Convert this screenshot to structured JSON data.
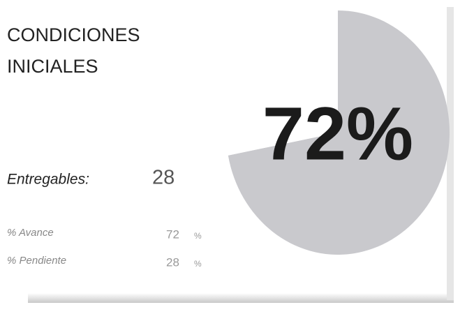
{
  "card": {
    "title": [
      "CONDICIONES",
      "INICIALES"
    ],
    "deliverables_label": "Entregables:",
    "deliverables": 28,
    "rows": [
      {
        "label": "% Avance",
        "value": 72,
        "unit": "%"
      },
      {
        "label": "% Pendiente",
        "value": 28,
        "unit": "%"
      }
    ]
  },
  "chart_data": {
    "type": "pie",
    "values": [
      72,
      28
    ],
    "value_labels": [
      "72%",
      null
    ],
    "colors": [
      "#c9c9cd",
      "#ffffff"
    ]
  }
}
